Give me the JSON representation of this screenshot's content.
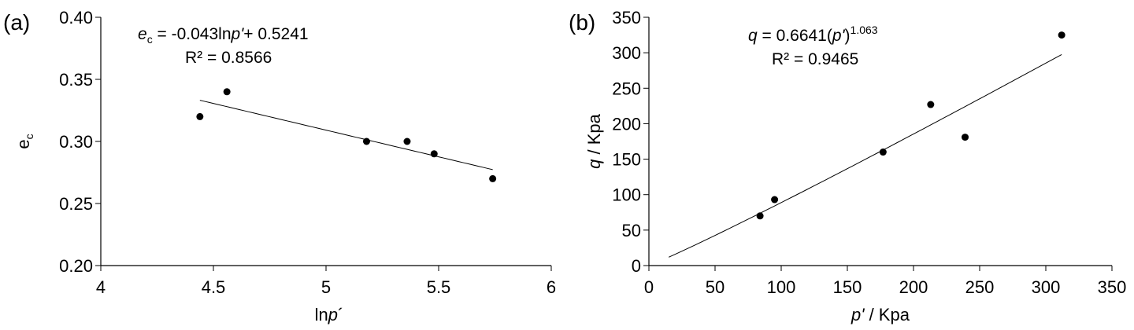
{
  "chart_data": [
    {
      "type": "scatter",
      "panel_label": "(a)",
      "ylabel": "e_c",
      "xlabel": "lnp´",
      "xlim": [
        4,
        6
      ],
      "ylim": [
        0.2,
        0.4
      ],
      "xticks": [
        "4",
        "4.5",
        "5",
        "5.5",
        "6"
      ],
      "yticks": [
        "0.20",
        "0.25",
        "0.30",
        "0.35",
        "0.40"
      ],
      "points": [
        {
          "x": 4.44,
          "y": 0.32
        },
        {
          "x": 4.56,
          "y": 0.34
        },
        {
          "x": 5.18,
          "y": 0.3
        },
        {
          "x": 5.36,
          "y": 0.3
        },
        {
          "x": 5.48,
          "y": 0.29
        },
        {
          "x": 5.74,
          "y": 0.27
        }
      ],
      "trendline": {
        "kind": "linear",
        "slope": -0.043,
        "intercept": 0.5241,
        "x_from": 4.44,
        "x_to": 5.74
      },
      "equation": {
        "lhs": "e",
        "lhs_sub": "c",
        "rhs": " = -0.043ln",
        "var": "p'",
        "tail": "+ 0.5241"
      },
      "r2": "R² = 0.8566",
      "grid": false
    },
    {
      "type": "scatter",
      "panel_label": "(b)",
      "ylabel": "q / Kpa",
      "xlabel": "p' / Kpa",
      "xlim": [
        0,
        350
      ],
      "ylim": [
        0,
        350
      ],
      "xticks": [
        "0",
        "50",
        "100",
        "150",
        "200",
        "250",
        "300",
        "350"
      ],
      "yticks": [
        "0",
        "50",
        "100",
        "150",
        "200",
        "250",
        "300",
        "350"
      ],
      "points": [
        {
          "x": 84,
          "y": 70
        },
        {
          "x": 95,
          "y": 93
        },
        {
          "x": 177,
          "y": 160
        },
        {
          "x": 213,
          "y": 227
        },
        {
          "x": 239,
          "y": 181
        },
        {
          "x": 312,
          "y": 325
        }
      ],
      "trendline": {
        "kind": "power",
        "coef": 0.6641,
        "exponent": 1.063,
        "x_from": 15,
        "x_to": 312
      },
      "equation": {
        "lhs": "q",
        "rhs": " = 0.6641(",
        "var": "p'",
        "close": ")",
        "sup": "1.063"
      },
      "r2": "R² = 0.9465",
      "grid": false
    }
  ]
}
